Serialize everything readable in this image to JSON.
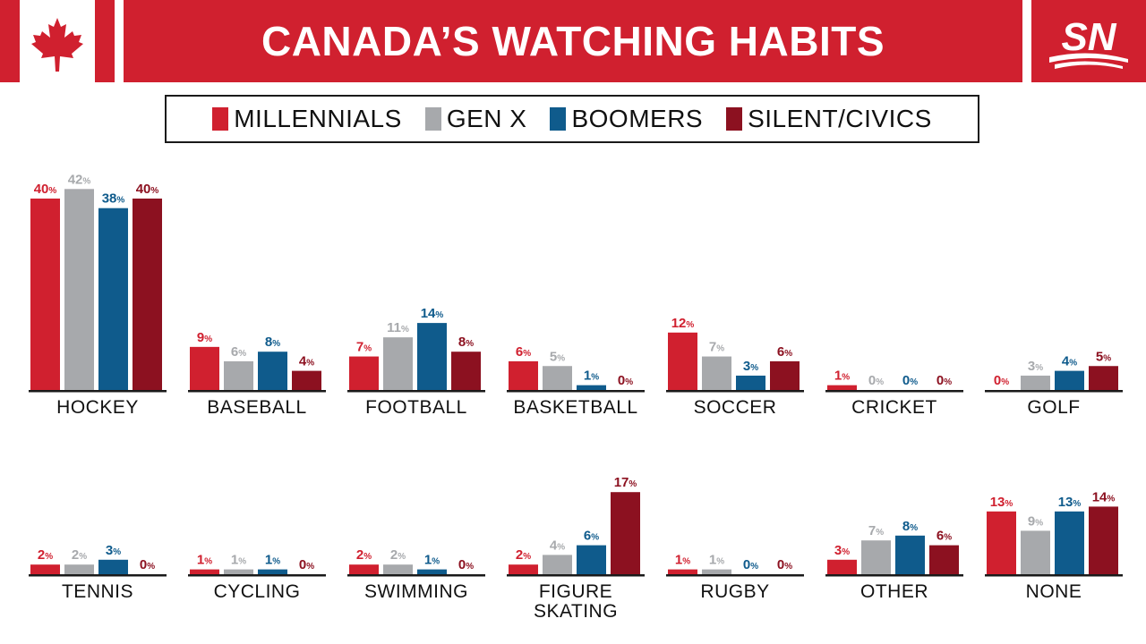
{
  "title": "CANADA’S WATCHING HABITS",
  "logo": {
    "text": "SN",
    "bg": "#d0202f"
  },
  "flag": {
    "red": "#d0202f"
  },
  "colors": {
    "millennials": "#d0202f",
    "genx": "#a7a9ac",
    "boomers": "#0f5b8c",
    "silent": "#8c1120"
  },
  "legend": [
    {
      "label": "MILLENNIALS",
      "color": "#d0202f"
    },
    {
      "label": "GEN X",
      "color": "#a7a9ac"
    },
    {
      "label": "BOOMERS",
      "color": "#0f5b8c"
    },
    {
      "label": "SILENT/CIVICS",
      "color": "#8c1120"
    }
  ],
  "chart_data": {
    "type": "bar",
    "unit": "%",
    "series": [
      {
        "name": "MILLENNIALS",
        "color": "#d0202f"
      },
      {
        "name": "GEN X",
        "color": "#a7a9ac"
      },
      {
        "name": "BOOMERS",
        "color": "#0f5b8c"
      },
      {
        "name": "SILENT/CIVICS",
        "color": "#8c1120"
      }
    ],
    "rows": [
      [
        {
          "label": [
            "HOCKEY"
          ],
          "values": [
            40,
            42,
            38,
            40
          ]
        },
        {
          "label": [
            "BASEBALL"
          ],
          "values": [
            9,
            6,
            8,
            4
          ]
        },
        {
          "label": [
            "FOOTBALL"
          ],
          "values": [
            7,
            11,
            14,
            8
          ]
        },
        {
          "label": [
            "BASKETBALL"
          ],
          "values": [
            6,
            5,
            1,
            0
          ]
        },
        {
          "label": [
            "SOCCER"
          ],
          "values": [
            12,
            7,
            3,
            6
          ]
        },
        {
          "label": [
            "CRICKET"
          ],
          "values": [
            1,
            0,
            0,
            0
          ]
        },
        {
          "label": [
            "GOLF"
          ],
          "values": [
            0,
            3,
            4,
            5
          ]
        }
      ],
      [
        {
          "label": [
            "TENNIS"
          ],
          "values": [
            2,
            2,
            3,
            0
          ]
        },
        {
          "label": [
            "CYCLING"
          ],
          "values": [
            1,
            1,
            1,
            0
          ]
        },
        {
          "label": [
            "SWIMMING"
          ],
          "values": [
            2,
            2,
            1,
            0
          ]
        },
        {
          "label": [
            "FIGURE",
            "SKATING"
          ],
          "values": [
            2,
            4,
            6,
            17
          ]
        },
        {
          "label": [
            "RUGBY"
          ],
          "values": [
            1,
            1,
            0,
            0
          ]
        },
        {
          "label": [
            "OTHER"
          ],
          "values": [
            3,
            7,
            8,
            6
          ]
        },
        {
          "label": [
            "NONE"
          ],
          "values": [
            13,
            9,
            13,
            14
          ]
        }
      ]
    ]
  }
}
